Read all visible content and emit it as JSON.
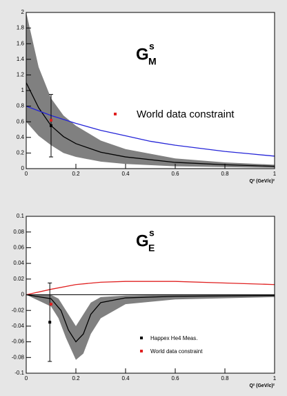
{
  "chart_data": [
    {
      "type": "line",
      "title": {
        "main": "G",
        "sup": "s",
        "sub": "M"
      },
      "x_label": "Q² (GeV/c)²",
      "xlim": [
        0,
        1
      ],
      "xticks": [
        0,
        0.2,
        0.4,
        0.6,
        0.8,
        1
      ],
      "ylim": [
        0,
        2
      ],
      "yticks": [
        0,
        0.2,
        0.4,
        0.6,
        0.8,
        1,
        1.2,
        1.4,
        1.6,
        1.8,
        2
      ],
      "band": {
        "color": "#808080",
        "x": [
          0,
          0.05,
          0.1,
          0.15,
          0.2,
          0.3,
          0.4,
          0.6,
          0.8,
          1
        ],
        "lower": [
          0.6,
          0.42,
          0.3,
          0.2,
          0.15,
          0.09,
          0.06,
          0.03,
          0.02,
          0.01
        ],
        "upper": [
          2,
          1.3,
          0.9,
          0.68,
          0.55,
          0.36,
          0.25,
          0.13,
          0.08,
          0.05
        ]
      },
      "series": [
        {
          "color": "#000000",
          "x": [
            0,
            0.05,
            0.1,
            0.15,
            0.2,
            0.3,
            0.4,
            0.6,
            0.8,
            1
          ],
          "values": [
            1.1,
            0.78,
            0.55,
            0.41,
            0.32,
            0.21,
            0.15,
            0.08,
            0.05,
            0.03
          ]
        },
        {
          "color": "#2424d8",
          "x": [
            0,
            0.1,
            0.2,
            0.3,
            0.4,
            0.5,
            0.6,
            0.7,
            0.8,
            0.9,
            1
          ],
          "values": [
            0.8,
            0.68,
            0.58,
            0.49,
            0.42,
            0.35,
            0.3,
            0.26,
            0.22,
            0.19,
            0.16
          ]
        }
      ],
      "points": [
        {
          "color": "#000000",
          "x": 0.1,
          "y": 0.55,
          "yerr": 0.4
        },
        {
          "name": "World data constraint",
          "color": "#e02020",
          "x": 0.1,
          "y": 0.62
        }
      ]
    },
    {
      "type": "line",
      "title": {
        "main": "G",
        "sup": "s",
        "sub": "E"
      },
      "x_label": "Q² (GeV/c)²",
      "xlim": [
        0,
        1
      ],
      "xticks": [
        0,
        0.2,
        0.4,
        0.6,
        0.8,
        1
      ],
      "ylim": [
        -0.1,
        0.1
      ],
      "yticks": [
        -0.1,
        -0.08,
        -0.06,
        -0.04,
        -0.02,
        0,
        0.02,
        0.04,
        0.06,
        0.08,
        0.1
      ],
      "band": {
        "color": "#808080",
        "x": [
          0,
          0.1,
          0.13,
          0.16,
          0.2,
          0.23,
          0.26,
          0.3,
          0.4,
          0.6,
          1
        ],
        "lower": [
          0,
          -0.015,
          -0.03,
          -0.055,
          -0.083,
          -0.075,
          -0.05,
          -0.03,
          -0.012,
          -0.006,
          -0.003
        ],
        "upper": [
          0,
          0,
          -0.005,
          -0.02,
          -0.04,
          -0.025,
          -0.01,
          -0.003,
          -0.001,
          0,
          0
        ]
      },
      "series": [
        {
          "color": "#000000",
          "x": [
            0,
            0.1,
            0.14,
            0.17,
            0.2,
            0.23,
            0.26,
            0.3,
            0.4,
            0.6,
            1
          ],
          "values": [
            0,
            -0.005,
            -0.02,
            -0.045,
            -0.06,
            -0.05,
            -0.025,
            -0.01,
            -0.004,
            -0.002,
            -0.001
          ]
        },
        {
          "color": "#e02020",
          "x": [
            0,
            0.1,
            0.2,
            0.3,
            0.4,
            0.6,
            0.8,
            1
          ],
          "values": [
            0,
            0.007,
            0.013,
            0.016,
            0.017,
            0.017,
            0.015,
            0.013
          ]
        }
      ],
      "points": [
        {
          "name": "Happex He4 Meas.",
          "color": "#000000",
          "x": 0.095,
          "y": -0.035,
          "yerr": 0.05
        },
        {
          "name": "World data constraint",
          "color": "#e02020",
          "x": 0.1,
          "y": -0.012
        }
      ]
    }
  ]
}
